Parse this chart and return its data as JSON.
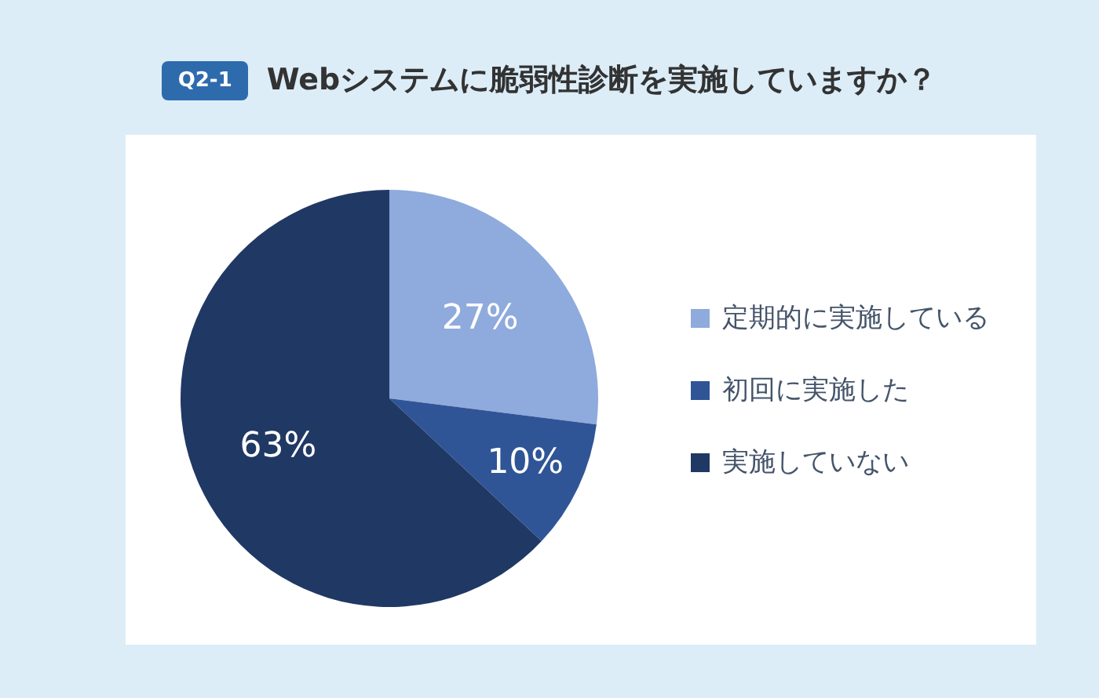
{
  "chart_data": {
    "type": "pie",
    "title": "Webシステムに脆弱性診断を実施していますか？",
    "annotations": [
      "Q2-1"
    ],
    "categories": [
      "定期的に実施している",
      "初回に実施した",
      "実施していない"
    ],
    "values": [
      27,
      10,
      63
    ],
    "colors": [
      "#8faadc",
      "#2f5597",
      "#203864"
    ],
    "value_labels": [
      "27%",
      "10%",
      "63%"
    ],
    "legend": "right"
  }
}
